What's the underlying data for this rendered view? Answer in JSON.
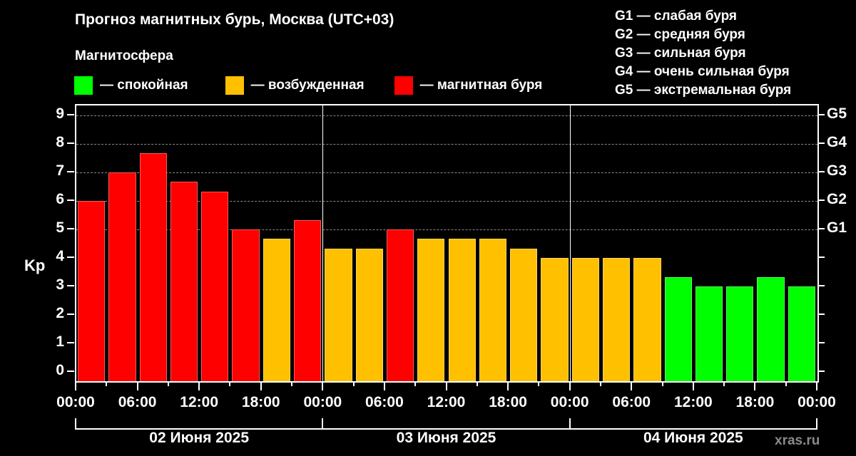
{
  "title": "Прогноз магнитных бурь, Москва (UTC+03)",
  "subtitle": "Магнитосфера",
  "legend": [
    {
      "label": "— спокойная",
      "color": "#00ff00"
    },
    {
      "label": "— возбужденная",
      "color": "#ffc000"
    },
    {
      "label": "— магнитная буря",
      "color": "#ff0000"
    }
  ],
  "g_legend": [
    "G1 — слабая буря",
    "G2 — средняя буря",
    "G3 — сильная буря",
    "G4 — очень сильная буря",
    "G5 — экстремальная буря"
  ],
  "y_axis_label": "Kp",
  "watermark": "xras.ru",
  "colors": {
    "quiet": "#00ff00",
    "active": "#ffc000",
    "storm": "#ff0000"
  },
  "chart_data": {
    "type": "bar",
    "title": "Прогноз магнитных бурь, Москва (UTC+03)",
    "xlabel": "",
    "ylabel": "Kp",
    "ylim": [
      0,
      9
    ],
    "yticks": [
      0,
      1,
      2,
      3,
      4,
      5,
      6,
      7,
      8,
      9
    ],
    "right_axis_ticks": [
      {
        "value": 5,
        "label": "G1"
      },
      {
        "value": 6,
        "label": "G2"
      },
      {
        "value": 7,
        "label": "G3"
      },
      {
        "value": 8,
        "label": "G4"
      },
      {
        "value": 9,
        "label": "G5"
      }
    ],
    "grid": "dashed horizontal at 5–9",
    "x_tick_labels": [
      "00:00",
      "06:00",
      "12:00",
      "18:00",
      "00:00",
      "06:00",
      "12:00",
      "18:00",
      "00:00",
      "06:00",
      "12:00",
      "18:00",
      "00:00"
    ],
    "days": [
      "02 Июня 2025",
      "03 Июня 2025",
      "04 Июня 2025"
    ],
    "categories": [
      "02.06 00-03",
      "02.06 03-06",
      "02.06 06-09",
      "02.06 09-12",
      "02.06 12-15",
      "02.06 15-18",
      "02.06 18-21",
      "02.06 21-24",
      "03.06 00-03",
      "03.06 03-06",
      "03.06 06-09",
      "03.06 09-12",
      "03.06 12-15",
      "03.06 15-18",
      "03.06 18-21",
      "03.06 21-24",
      "04.06 00-03",
      "04.06 03-06",
      "04.06 06-09",
      "04.06 09-12",
      "04.06 12-15",
      "04.06 15-18",
      "04.06 18-21",
      "04.06 21-24"
    ],
    "values": [
      6.0,
      7.0,
      7.67,
      6.67,
      6.33,
      5.0,
      4.67,
      5.33,
      4.33,
      4.33,
      5.0,
      4.67,
      4.67,
      4.67,
      4.33,
      4.0,
      4.0,
      4.0,
      4.0,
      3.33,
      3.0,
      3.0,
      3.33,
      3.0
    ],
    "status": [
      "storm",
      "storm",
      "storm",
      "storm",
      "storm",
      "storm",
      "active",
      "storm",
      "active",
      "active",
      "storm",
      "active",
      "active",
      "active",
      "active",
      "active",
      "active",
      "active",
      "active",
      "quiet",
      "quiet",
      "quiet",
      "quiet",
      "quiet"
    ],
    "legend": [
      "спокойная",
      "возбужденная",
      "магнитная буря"
    ],
    "legend_position": "top"
  }
}
